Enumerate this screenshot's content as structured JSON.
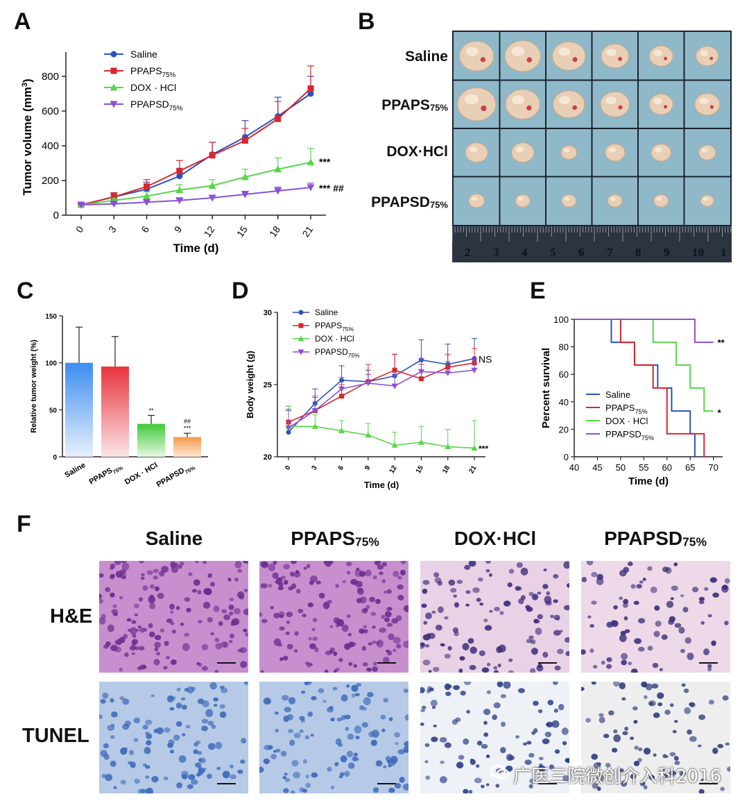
{
  "panel_letters": {
    "a": "A",
    "b": "B",
    "c": "C",
    "d": "D",
    "e": "E",
    "f": "F"
  },
  "groups": [
    "Saline",
    "PPAPS",
    "DOX · HCl",
    "PPAPSD"
  ],
  "subscript": "75%",
  "colors": {
    "saline": "#2a52be",
    "ppaps": "#d9262e",
    "dox": "#58d64a",
    "ppapsd": "#8a4fd6"
  },
  "chart_data": [
    {
      "id": "A",
      "type": "line",
      "xlabel": "Time (d)",
      "ylabel": "Tumor volume (mm",
      "ylabel_sup": "3",
      "ylabel_end": ")",
      "x": [
        0,
        3,
        6,
        9,
        12,
        15,
        18,
        21
      ],
      "xticks": [
        "0",
        "3",
        "6",
        "9",
        "12",
        "15",
        "18",
        "21"
      ],
      "ylim": [
        0,
        900
      ],
      "yticks": [
        "0",
        "200",
        "400",
        "600",
        "800"
      ],
      "series": [
        {
          "name": "Saline",
          "marker": "circle",
          "values": [
            60,
            105,
            150,
            225,
            350,
            450,
            570,
            700
          ],
          "err": [
            10,
            20,
            40,
            40,
            70,
            95,
            110,
            100
          ]
        },
        {
          "name": "PPAPS",
          "marker": "square",
          "values": [
            60,
            105,
            165,
            255,
            345,
            430,
            555,
            730
          ],
          "err": [
            8,
            25,
            40,
            60,
            75,
            70,
            100,
            130
          ]
        },
        {
          "name": "DOX · HCl",
          "marker": "triangle",
          "values": [
            60,
            85,
            110,
            145,
            170,
            220,
            265,
            305
          ],
          "err": [
            5,
            12,
            25,
            30,
            35,
            45,
            65,
            80
          ]
        },
        {
          "name": "PPAPSD",
          "marker": "triangle-down",
          "values": [
            60,
            65,
            75,
            85,
            100,
            120,
            140,
            160
          ],
          "err": [
            5,
            8,
            10,
            10,
            12,
            18,
            22,
            25
          ]
        }
      ],
      "annotations": [
        "***",
        "*** ##"
      ]
    },
    {
      "id": "C",
      "type": "bar",
      "ylabel": "Relative tumor weight (%)",
      "categories": [
        "Saline",
        "PPAPS",
        "DOX · HCl",
        "PPAPSD"
      ],
      "values": [
        100,
        96,
        35,
        21
      ],
      "err": [
        38,
        32,
        9,
        4
      ],
      "ylim": [
        0,
        150
      ],
      "yticks": [
        "0",
        "50",
        "100",
        "150"
      ],
      "annotations": [
        "",
        "",
        "**",
        "##\n***"
      ]
    },
    {
      "id": "D",
      "type": "line",
      "xlabel": "Time (d)",
      "ylabel": "Body weight (g)",
      "x": [
        0,
        3,
        6,
        9,
        12,
        15,
        18,
        21
      ],
      "xticks": [
        "0",
        "3",
        "6",
        "9",
        "12",
        "15",
        "18",
        "21"
      ],
      "ylim": [
        20,
        30
      ],
      "yticks": [
        "20",
        "25",
        "30"
      ],
      "series": [
        {
          "name": "Saline",
          "marker": "circle",
          "values": [
            21.7,
            23.7,
            25.3,
            25.2,
            25.6,
            26.7,
            26.4,
            26.8
          ],
          "err": [
            1.5,
            1.0,
            1.0,
            0.8,
            1.5,
            1.4,
            1.4,
            1.4
          ]
        },
        {
          "name": "PPAPS",
          "marker": "square",
          "values": [
            22.4,
            23.2,
            24.2,
            25.2,
            26.0,
            25.4,
            26.2,
            26.5
          ],
          "err": [
            1.1,
            0.9,
            0.8,
            1.2,
            1.1,
            1.0,
            0.9,
            1.0
          ]
        },
        {
          "name": "DOX · HCl",
          "marker": "triangle",
          "values": [
            22.1,
            22.1,
            21.8,
            21.5,
            20.8,
            21.0,
            20.7,
            20.6
          ],
          "err": [
            1.4,
            0.8,
            0.7,
            0.8,
            0.9,
            1.1,
            1.2,
            1.9
          ]
        },
        {
          "name": "PPAPSD",
          "marker": "triangle-down",
          "values": [
            22.0,
            23.2,
            24.7,
            25.1,
            24.9,
            25.9,
            25.8,
            26.0
          ],
          "err": [
            1.3,
            1.0,
            0.8,
            0.6,
            0.8,
            0.9,
            0.8,
            0.8
          ]
        }
      ],
      "annotations": [
        "NS",
        "***"
      ]
    },
    {
      "id": "E",
      "type": "line",
      "step": true,
      "xlabel": "Time (d)",
      "ylabel": "Percent survival",
      "xlim": [
        40,
        72
      ],
      "xticks": [
        "40",
        "45",
        "50",
        "55",
        "60",
        "65",
        "70"
      ],
      "ylim": [
        0,
        100
      ],
      "yticks": [
        "0",
        "20",
        "40",
        "60",
        "80",
        "100"
      ],
      "series": [
        {
          "name": "Saline",
          "x": [
            40,
            48,
            53,
            58,
            61,
            65,
            66
          ],
          "values": [
            100,
            83.3,
            66.7,
            50,
            33.3,
            16.7,
            0
          ]
        },
        {
          "name": "PPAPS",
          "x": [
            40,
            50,
            53,
            57,
            60,
            67,
            68
          ],
          "values": [
            100,
            83.3,
            66.7,
            50,
            16.7,
            16.7,
            0
          ]
        },
        {
          "name": "DOX · HCl",
          "x": [
            40,
            57,
            62,
            65,
            68,
            70
          ],
          "values": [
            100,
            83.3,
            66.7,
            50,
            33.3,
            33.3
          ]
        },
        {
          "name": "PPAPSD",
          "x": [
            40,
            66,
            70
          ],
          "values": [
            100,
            83.3,
            83.3
          ]
        }
      ],
      "annotations": [
        "**",
        "*"
      ]
    }
  ],
  "panel_b": {
    "row_labels": [
      "Saline",
      "PPAPS",
      "DOX·HCl",
      "PPAPSD"
    ],
    "ruler_numbers": [
      "2",
      "3",
      "4",
      "5",
      "6",
      "7",
      "8",
      "9",
      "10",
      "1"
    ]
  },
  "panel_f": {
    "columns": [
      "Saline",
      "PPAPS",
      "DOX·HCl",
      "PPAPSD"
    ],
    "rows": [
      "H&E",
      "TUNEL"
    ]
  },
  "watermark": "广医三院微创介入科2016"
}
